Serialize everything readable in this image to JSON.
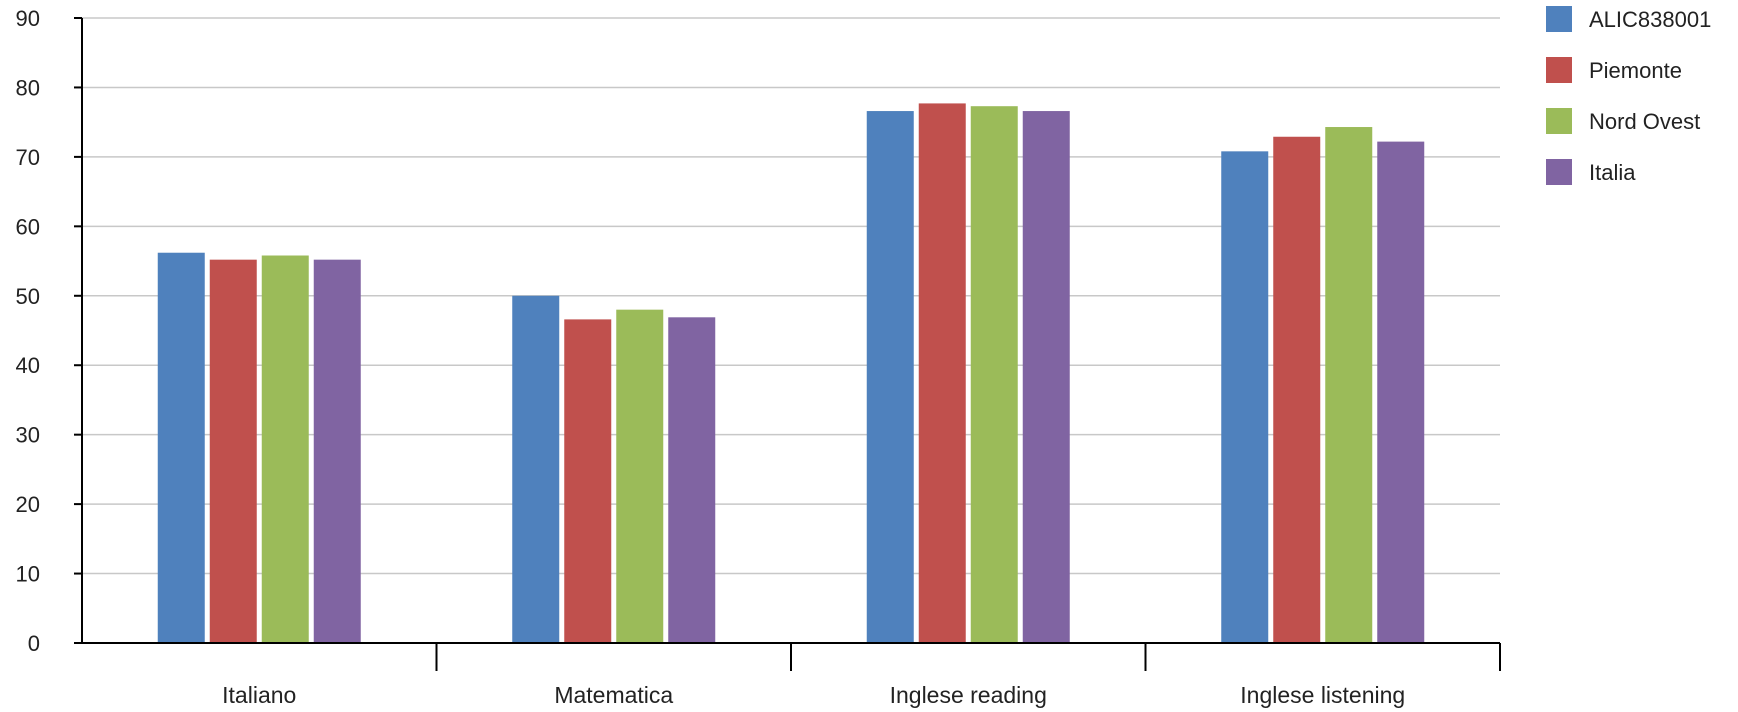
{
  "chart_data": {
    "type": "bar",
    "title": "",
    "xlabel": "",
    "ylabel": "",
    "categories": [
      "Italiano",
      "Matematica",
      "Inglese reading",
      "Inglese listening"
    ],
    "series": [
      {
        "name": "ALIC838001",
        "color": "#4f81bd",
        "values": [
          56.2,
          50.0,
          76.6,
          70.8
        ]
      },
      {
        "name": "Piemonte",
        "color": "#c0504d",
        "values": [
          55.2,
          46.6,
          77.7,
          72.9
        ]
      },
      {
        "name": "Nord Ovest",
        "color": "#9bbb59",
        "values": [
          55.8,
          48.0,
          77.3,
          74.3
        ]
      },
      {
        "name": "Italia",
        "color": "#8064a2",
        "values": [
          55.2,
          46.9,
          76.6,
          72.2
        ]
      }
    ],
    "ylim": [
      0,
      90
    ],
    "yticks": [
      "0",
      "10",
      "20",
      "30",
      "40",
      "50",
      "60",
      "70",
      "80",
      "90"
    ],
    "grid": true,
    "legend_position": "top-right"
  }
}
